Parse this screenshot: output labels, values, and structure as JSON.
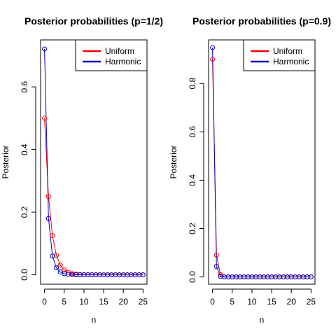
{
  "chart_data": [
    {
      "type": "line",
      "title": "Posterior probabilities (p=1/2)",
      "xlabel": "n",
      "ylabel": "Posterior",
      "xlim": [
        -1,
        26
      ],
      "ylim": [
        -0.03,
        0.75
      ],
      "xticks": [
        0,
        5,
        10,
        15,
        20,
        25
      ],
      "yticks": [
        0.0,
        0.2,
        0.4,
        0.6
      ],
      "ytick_labels": [
        "0.0",
        "0.2",
        "0.4",
        "0.6"
      ],
      "legend_position": "top-right",
      "x": [
        0,
        1,
        2,
        3,
        4,
        5,
        6,
        7,
        8,
        9,
        10,
        11,
        12,
        13,
        14,
        15,
        16,
        17,
        18,
        19,
        20,
        21,
        22,
        23,
        24,
        25
      ],
      "series": [
        {
          "name": "Uniform",
          "color": "#ff0000",
          "values": [
            0.5,
            0.25,
            0.125,
            0.0625,
            0.03125,
            0.015625,
            0.0078,
            0.0039,
            0.002,
            0.001,
            0.0005,
            0.0002,
            0.0001,
            0.0001,
            0,
            0,
            0,
            0,
            0,
            0,
            0,
            0,
            0,
            0,
            0,
            0
          ]
        },
        {
          "name": "Harmonic",
          "color": "#0000cc",
          "values": [
            0.721,
            0.18,
            0.06,
            0.0225,
            0.009,
            0.0038,
            0.0016,
            0.0007,
            0.0003,
            0.0001,
            0.0001,
            0,
            0,
            0,
            0,
            0,
            0,
            0,
            0,
            0,
            0,
            0,
            0,
            0,
            0,
            0
          ]
        }
      ]
    },
    {
      "type": "line",
      "title": "Posterior probabilities (p=0.9)",
      "xlabel": "n",
      "ylabel": "Posterior",
      "xlim": [
        -1,
        26
      ],
      "ylim": [
        -0.03,
        0.98
      ],
      "xticks": [
        0,
        5,
        10,
        15,
        20,
        25
      ],
      "yticks": [
        0.0,
        0.2,
        0.4,
        0.6,
        0.8
      ],
      "ytick_labels": [
        "0.0",
        "0.2",
        "0.4",
        "0.6",
        "0.8"
      ],
      "legend_position": "top-right",
      "x": [
        0,
        1,
        2,
        3,
        4,
        5,
        6,
        7,
        8,
        9,
        10,
        11,
        12,
        13,
        14,
        15,
        16,
        17,
        18,
        19,
        20,
        21,
        22,
        23,
        24,
        25
      ],
      "series": [
        {
          "name": "Uniform",
          "color": "#ff0000",
          "values": [
            0.9,
            0.09,
            0.009,
            0.0009,
            0.0001,
            0,
            0,
            0,
            0,
            0,
            0,
            0,
            0,
            0,
            0,
            0,
            0,
            0,
            0,
            0,
            0,
            0,
            0,
            0,
            0,
            0
          ]
        },
        {
          "name": "Harmonic",
          "color": "#0000cc",
          "values": [
            0.948,
            0.043,
            0.0026,
            0.0002,
            0,
            0,
            0,
            0,
            0,
            0,
            0,
            0,
            0,
            0,
            0,
            0,
            0,
            0,
            0,
            0,
            0,
            0,
            0,
            0,
            0,
            0
          ]
        }
      ]
    }
  ]
}
